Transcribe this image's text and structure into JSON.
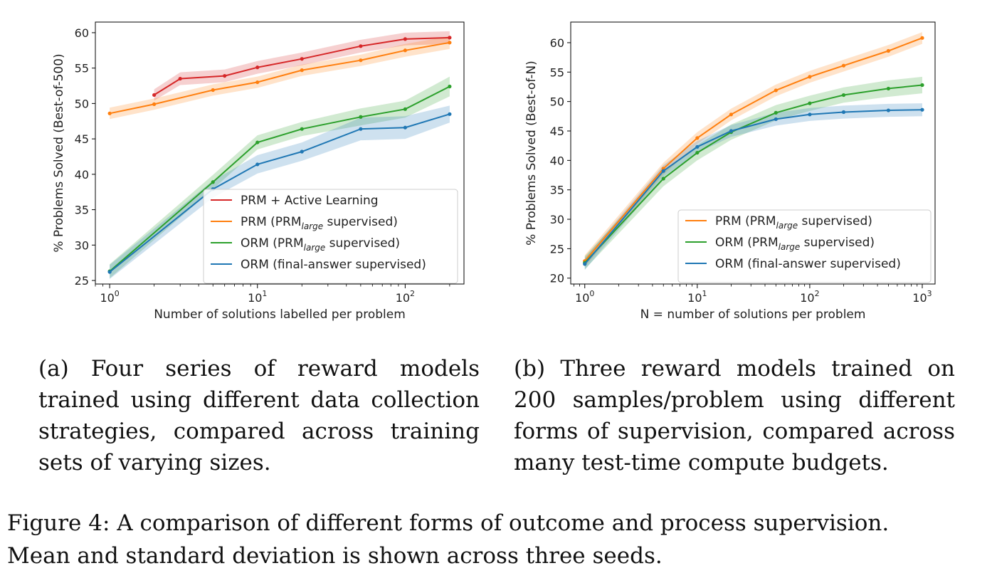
{
  "chart_data": [
    {
      "type": "line",
      "subcaption": "(a) Four series of reward models trained using different data collection strategies, compared across training sets of varying sizes.",
      "xlabel": "Number of solutions labelled per problem",
      "ylabel": "% Problems Solved (Best-of-500)",
      "xscale": "log",
      "xlim": [
        0.8,
        250
      ],
      "ylim": [
        24.5,
        61.5
      ],
      "xticks": [
        1,
        10,
        100
      ],
      "xtick_labels": [
        "10^0",
        "10^1",
        "10^2"
      ],
      "yticks": [
        25,
        30,
        35,
        40,
        45,
        50,
        55,
        60
      ],
      "legend_position": "lower-right",
      "grid": false,
      "series": [
        {
          "name": "PRM + Active Learning",
          "color": "#d62728",
          "x": [
            2,
            3,
            6,
            10,
            20,
            50,
            100,
            200
          ],
          "y": [
            51.2,
            53.5,
            53.9,
            55.1,
            56.3,
            58.1,
            59.1,
            59.3
          ],
          "err": [
            0.8,
            0.9,
            0.9,
            0.9,
            0.9,
            0.9,
            0.9,
            0.9
          ]
        },
        {
          "name": "PRM (PRM_large supervised)",
          "color": "#ff7f0e",
          "x": [
            1,
            2,
            5,
            10,
            20,
            50,
            100,
            200
          ],
          "y": [
            48.6,
            49.9,
            51.9,
            53.0,
            54.7,
            56.1,
            57.5,
            58.6
          ],
          "err": [
            0.8,
            0.8,
            0.8,
            0.8,
            0.8,
            0.8,
            0.9,
            0.9
          ]
        },
        {
          "name": "ORM (PRM_large supervised)",
          "color": "#2ca02c",
          "x": [
            1,
            5,
            10,
            20,
            50,
            100,
            200
          ],
          "y": [
            26.3,
            38.9,
            44.5,
            46.4,
            48.1,
            49.2,
            52.4
          ],
          "err": [
            1.0,
            1.0,
            1.0,
            1.0,
            1.2,
            1.2,
            1.4
          ]
        },
        {
          "name": "ORM (final-answer supervised)",
          "color": "#1f77b4",
          "x": [
            1,
            5,
            10,
            20,
            50,
            100,
            200
          ],
          "y": [
            26.2,
            37.9,
            41.4,
            43.2,
            46.4,
            46.6,
            48.5
          ],
          "err": [
            1.0,
            1.2,
            1.3,
            1.3,
            1.6,
            1.6,
            1.2
          ]
        }
      ]
    },
    {
      "type": "line",
      "subcaption": "(b) Three reward models trained on 200 samples/problem using different forms of supervision, compared across many test-time compute budgets.",
      "xlabel": "N = number of solutions per problem",
      "ylabel": "% Problems Solved (Best-of-N)",
      "xscale": "log",
      "xlim": [
        0.75,
        1300
      ],
      "ylim": [
        19,
        63.5
      ],
      "xticks": [
        1,
        10,
        100,
        1000
      ],
      "xtick_labels": [
        "10^0",
        "10^1",
        "10^2",
        "10^3"
      ],
      "yticks": [
        20,
        25,
        30,
        35,
        40,
        45,
        50,
        55,
        60
      ],
      "legend_position": "lower-right",
      "grid": false,
      "series": [
        {
          "name": "PRM (PRM_large supervised)",
          "color": "#ff7f0e",
          "x": [
            1,
            5,
            10,
            20,
            50,
            100,
            200,
            500,
            1000
          ],
          "y": [
            22.9,
            38.6,
            43.8,
            47.8,
            51.9,
            54.2,
            56.1,
            58.6,
            60.8
          ],
          "err": [
            1.0,
            1.0,
            1.0,
            1.0,
            1.0,
            1.0,
            1.0,
            1.0,
            1.0
          ]
        },
        {
          "name": "ORM (PRM_large supervised)",
          "color": "#2ca02c",
          "x": [
            1,
            5,
            10,
            20,
            50,
            100,
            200,
            500,
            1000
          ],
          "y": [
            22.6,
            36.9,
            41.3,
            44.8,
            48.1,
            49.7,
            51.1,
            52.2,
            52.8
          ],
          "err": [
            1.1,
            1.3,
            1.3,
            1.3,
            1.3,
            1.3,
            1.3,
            1.4,
            1.4
          ]
        },
        {
          "name": "ORM (final-answer supervised)",
          "color": "#1f77b4",
          "x": [
            1,
            5,
            10,
            20,
            50,
            100,
            200,
            500,
            1000
          ],
          "y": [
            22.4,
            38.2,
            42.3,
            45.0,
            47.0,
            47.8,
            48.2,
            48.5,
            48.6
          ],
          "err": [
            1.0,
            1.0,
            1.0,
            1.0,
            1.1,
            1.1,
            1.1,
            1.1,
            1.1
          ]
        }
      ]
    }
  ],
  "figure_caption": {
    "line1": "Figure 4: A comparison of different forms of outcome and process supervision.",
    "line2": "Mean and standard deviation is shown across three seeds."
  }
}
